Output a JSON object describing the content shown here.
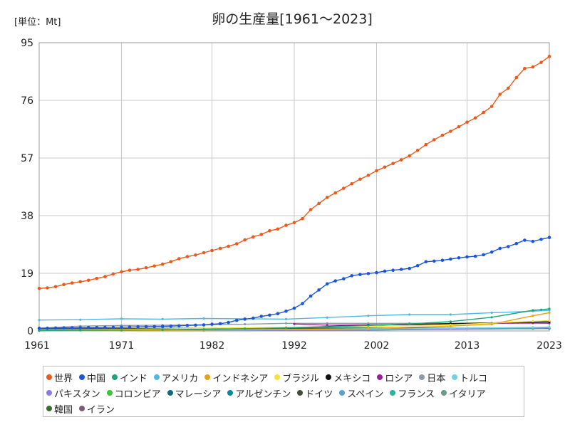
{
  "chart_data": {
    "type": "line",
    "title": "卵の生産量[1961〜2023]",
    "unit_label": "[単位：Mt]",
    "xlabel": "",
    "ylabel": "",
    "xlim": [
      1961,
      2023
    ],
    "ylim": [
      0,
      95
    ],
    "x_ticks": [
      "1961",
      "1971",
      "1982",
      "1992",
      "2002",
      "2013",
      "2023"
    ],
    "y_ticks": [
      "0",
      "19",
      "38",
      "57",
      "76",
      "95"
    ],
    "grid": true,
    "legend_position": "bottom",
    "series": [
      {
        "name": "世界",
        "color": "#ea5a1d",
        "x": [
          1961,
          1962,
          1963,
          1964,
          1965,
          1966,
          1967,
          1968,
          1969,
          1970,
          1971,
          1972,
          1973,
          1974,
          1975,
          1976,
          1977,
          1978,
          1979,
          1980,
          1981,
          1982,
          1983,
          1984,
          1985,
          1986,
          1987,
          1988,
          1989,
          1990,
          1991,
          1992,
          1993,
          1994,
          1995,
          1996,
          1997,
          1998,
          1999,
          2000,
          2001,
          2002,
          2003,
          2004,
          2005,
          2006,
          2007,
          2008,
          2009,
          2010,
          2011,
          2012,
          2013,
          2014,
          2015,
          2016,
          2017,
          2018,
          2019,
          2020,
          2021,
          2022,
          2023
        ],
        "values": [
          14.0,
          14.2,
          14.6,
          15.3,
          15.8,
          16.2,
          16.7,
          17.3,
          17.9,
          18.8,
          19.5,
          20.0,
          20.3,
          20.8,
          21.4,
          22.0,
          22.8,
          23.8,
          24.5,
          25.0,
          25.8,
          26.5,
          27.2,
          27.9,
          28.7,
          30.0,
          31.0,
          31.8,
          33.0,
          33.6,
          34.8,
          35.7,
          37.0,
          40.0,
          42.0,
          44.0,
          45.5,
          47.0,
          48.5,
          50.0,
          51.3,
          52.8,
          54.0,
          55.2,
          56.4,
          57.7,
          59.5,
          61.4,
          63.0,
          64.5,
          65.8,
          67.3,
          68.8,
          70.2,
          72.0,
          74.0,
          78.0,
          80.0,
          83.5,
          86.5,
          87.0,
          88.5,
          90.5
        ]
      },
      {
        "name": "中国",
        "color": "#1a56db",
        "x": [
          1961,
          1962,
          1963,
          1964,
          1965,
          1966,
          1967,
          1968,
          1969,
          1970,
          1971,
          1972,
          1973,
          1974,
          1975,
          1976,
          1977,
          1978,
          1979,
          1980,
          1981,
          1982,
          1983,
          1984,
          1985,
          1986,
          1987,
          1988,
          1989,
          1990,
          1991,
          1992,
          1993,
          1994,
          1995,
          1996,
          1997,
          1998,
          1999,
          2000,
          2001,
          2002,
          2003,
          2004,
          2005,
          2006,
          2007,
          2008,
          2009,
          2010,
          2011,
          2012,
          2013,
          2014,
          2015,
          2016,
          2017,
          2018,
          2019,
          2020,
          2021,
          2022,
          2023
        ],
        "values": [
          0.9,
          0.9,
          0.95,
          1.0,
          1.0,
          1.05,
          1.1,
          1.1,
          1.15,
          1.2,
          1.25,
          1.3,
          1.35,
          1.4,
          1.45,
          1.5,
          1.6,
          1.7,
          1.8,
          1.9,
          2.0,
          2.2,
          2.4,
          2.8,
          3.5,
          3.9,
          4.2,
          4.8,
          5.2,
          5.7,
          6.5,
          7.5,
          9.0,
          11.5,
          13.5,
          15.5,
          16.5,
          17.2,
          18.2,
          18.6,
          18.9,
          19.2,
          19.7,
          20.0,
          20.3,
          20.6,
          21.5,
          22.8,
          23.0,
          23.3,
          23.7,
          24.1,
          24.4,
          24.6,
          25.1,
          26.0,
          27.2,
          27.8,
          28.8,
          29.9,
          29.5,
          30.2,
          30.8
        ]
      },
      {
        "name": "インド",
        "color": "#1ba57b",
        "x": [
          1961,
          1966,
          1971,
          1976,
          1981,
          1986,
          1991,
          1996,
          2001,
          2006,
          2011,
          2016,
          2021,
          2022,
          2023
        ],
        "values": [
          0.15,
          0.2,
          0.28,
          0.38,
          0.52,
          0.75,
          1.0,
          1.35,
          1.8,
          2.3,
          3.1,
          4.5,
          6.8,
          7.0,
          7.3
        ]
      },
      {
        "name": "アメリカ",
        "color": "#4fb8e3",
        "x": [
          1961,
          1966,
          1971,
          1976,
          1981,
          1986,
          1991,
          1996,
          2001,
          2006,
          2011,
          2016,
          2021,
          2023
        ],
        "values": [
          3.6,
          3.7,
          4.0,
          3.9,
          4.1,
          4.0,
          3.9,
          4.4,
          5.0,
          5.4,
          5.4,
          6.0,
          6.5,
          6.8
        ]
      },
      {
        "name": "インドネシア",
        "color": "#e8a21a",
        "x": [
          1961,
          1971,
          1981,
          1991,
          2001,
          2011,
          2016,
          2021,
          2023
        ],
        "values": [
          0.05,
          0.1,
          0.25,
          0.5,
          0.8,
          1.6,
          2.2,
          5.0,
          6.0
        ]
      },
      {
        "name": "ブラジル",
        "color": "#f2e33a",
        "x": [
          1961,
          1971,
          1981,
          1991,
          2001,
          2011,
          2021,
          2023
        ],
        "values": [
          0.3,
          0.5,
          0.9,
          1.2,
          1.5,
          2.0,
          3.2,
          3.4
        ]
      },
      {
        "name": "メキシコ",
        "color": "#111111",
        "x": [
          1961,
          1971,
          1981,
          1991,
          2001,
          2011,
          2021,
          2023
        ],
        "values": [
          0.2,
          0.35,
          0.6,
          1.0,
          1.9,
          2.4,
          2.9,
          3.0
        ]
      },
      {
        "name": "ロシア",
        "color": "#9c1f98",
        "x": [
          1992,
          1996,
          2001,
          2006,
          2011,
          2016,
          2021,
          2023
        ],
        "values": [
          2.3,
          1.9,
          2.0,
          2.1,
          2.4,
          2.5,
          2.6,
          2.6
        ]
      },
      {
        "name": "日本",
        "color": "#8f9aa8",
        "x": [
          1961,
          1966,
          1971,
          1976,
          1981,
          1986,
          1991,
          1996,
          2001,
          2006,
          2011,
          2016,
          2021,
          2023
        ],
        "values": [
          0.9,
          1.6,
          1.8,
          1.9,
          2.0,
          2.2,
          2.5,
          2.5,
          2.5,
          2.5,
          2.5,
          2.6,
          2.6,
          2.5
        ]
      },
      {
        "name": "トルコ",
        "color": "#6ed3e6",
        "x": [
          1961,
          1981,
          2001,
          2011,
          2021,
          2023
        ],
        "values": [
          0.05,
          0.2,
          0.6,
          0.9,
          1.2,
          1.3
        ]
      },
      {
        "name": "パキスタン",
        "color": "#8c7be6",
        "x": [
          1961,
          1981,
          2001,
          2021,
          2023
        ],
        "values": [
          0.02,
          0.1,
          0.3,
          0.9,
          1.0
        ]
      },
      {
        "name": "コロンビア",
        "color": "#34c834",
        "x": [
          1961,
          1981,
          2001,
          2021,
          2023
        ],
        "values": [
          0.05,
          0.15,
          0.4,
          0.9,
          1.0
        ]
      },
      {
        "name": "マレーシア",
        "color": "#0e6b78",
        "x": [
          1961,
          1981,
          2001,
          2021,
          2023
        ],
        "values": [
          0.05,
          0.15,
          0.4,
          0.8,
          0.9
        ]
      },
      {
        "name": "アルゼンチン",
        "color": "#0a8a96",
        "x": [
          1961,
          1981,
          2001,
          2021,
          2023
        ],
        "values": [
          0.1,
          0.2,
          0.3,
          0.8,
          0.9
        ]
      },
      {
        "name": "ドイツ",
        "color": "#444d3a",
        "x": [
          1961,
          1981,
          2001,
          2021,
          2023
        ],
        "values": [
          0.7,
          0.9,
          0.9,
          0.9,
          0.9
        ]
      },
      {
        "name": "スペイン",
        "color": "#5d9fc9",
        "x": [
          1961,
          1981,
          2001,
          2021,
          2023
        ],
        "values": [
          0.3,
          0.7,
          0.6,
          0.9,
          0.9
        ]
      },
      {
        "name": "フランス",
        "color": "#2ab39b",
        "x": [
          1961,
          1981,
          2001,
          2021,
          2023
        ],
        "values": [
          0.6,
          0.9,
          1.0,
          0.9,
          0.9
        ]
      },
      {
        "name": "イタリア",
        "color": "#6a9a88",
        "x": [
          1961,
          1981,
          2001,
          2021,
          2023
        ],
        "values": [
          0.4,
          0.7,
          0.8,
          0.8,
          0.8
        ]
      },
      {
        "name": "韓国",
        "color": "#3a6b2f",
        "x": [
          1961,
          1981,
          2001,
          2021,
          2023
        ],
        "values": [
          0.05,
          0.2,
          0.5,
          0.8,
          0.8
        ]
      },
      {
        "name": "イラン",
        "color": "#7b5a7b",
        "x": [
          1961,
          1981,
          2001,
          2021,
          2023
        ],
        "values": [
          0.05,
          0.2,
          0.6,
          0.9,
          0.9
        ]
      }
    ]
  }
}
